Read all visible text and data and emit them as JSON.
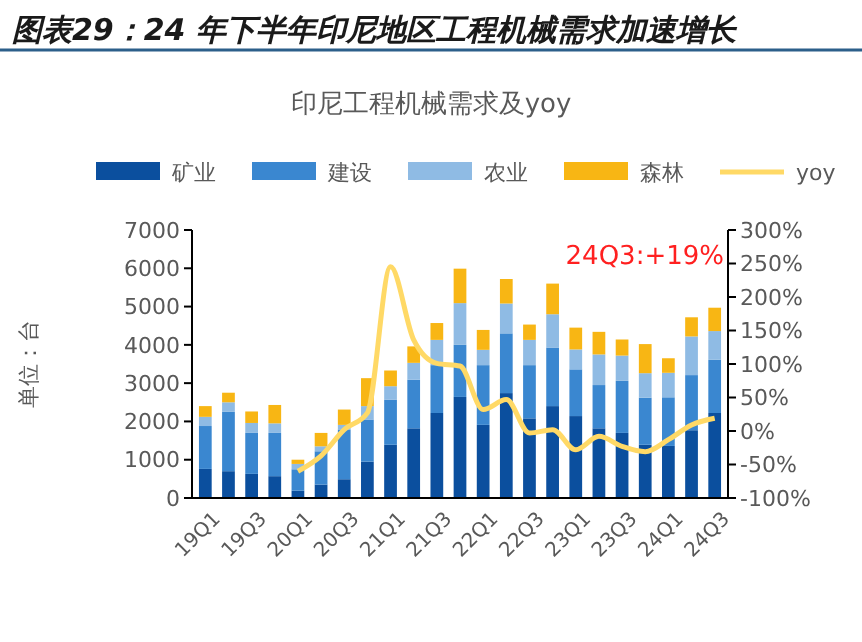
{
  "chart_data": {
    "type": "bar",
    "stacked": true,
    "title": "图表29：24 年下半年印尼地区工程机械需求加速增长",
    "subtitle": "印尼工程机械需求及yoy",
    "ylabel": "单位：台",
    "categories": [
      "19Q1",
      null,
      "19Q3",
      null,
      "20Q1",
      null,
      "20Q3",
      null,
      "21Q1",
      null,
      "21Q3",
      null,
      "22Q1",
      null,
      "22Q3",
      null,
      "23Q1",
      null,
      "23Q3",
      null,
      "24Q1",
      null,
      "24Q3"
    ],
    "series": [
      {
        "name": "矿业",
        "color": "#0b4f9e",
        "values": [
          760,
          700,
          630,
          570,
          190,
          350,
          490,
          950,
          1390,
          1820,
          2220,
          2640,
          1910,
          2740,
          2080,
          2400,
          2140,
          1820,
          1700,
          1390,
          1360,
          1770,
          2220
        ]
      },
      {
        "name": "建设",
        "color": "#3a87d0",
        "values": [
          1120,
          1550,
          1070,
          1130,
          560,
          870,
          1300,
          1100,
          1180,
          1270,
          1250,
          1360,
          1560,
          1560,
          1390,
          1530,
          1220,
          1130,
          1360,
          1230,
          1270,
          1440,
          1390
        ]
      },
      {
        "name": "农业",
        "color": "#8fbbe4",
        "values": [
          240,
          250,
          260,
          250,
          140,
          130,
          120,
          350,
          350,
          440,
          660,
          1090,
          400,
          780,
          660,
          870,
          520,
          800,
          660,
          640,
          640,
          1010,
          750
        ]
      },
      {
        "name": "森林",
        "color": "#f8b614",
        "values": [
          280,
          250,
          300,
          480,
          110,
          350,
          400,
          730,
          410,
          430,
          440,
          900,
          520,
          640,
          400,
          800,
          570,
          590,
          420,
          760,
          380,
          500,
          610
        ]
      },
      {
        "name": "yoy",
        "type": "line",
        "axis": "y2",
        "color": "#ffd966",
        "marker": "none",
        "values": [
          null,
          null,
          null,
          null,
          -60,
          -37,
          2,
          27,
          245,
          136,
          101,
          97,
          32,
          47,
          -3,
          2,
          -28,
          -8,
          -23,
          -31,
          -13,
          9,
          19
        ]
      }
    ],
    "ylim": [
      0,
      7000
    ],
    "yticks": [
      0,
      1000,
      2000,
      3000,
      4000,
      5000,
      6000,
      7000
    ],
    "y2lim": [
      -100,
      300
    ],
    "y2ticks": [
      {
        "value": -100,
        "label": "-100%"
      },
      {
        "value": -50,
        "label": "-50%"
      },
      {
        "value": 0,
        "label": "0%"
      },
      {
        "value": 50,
        "label": "50%"
      },
      {
        "value": 100,
        "label": "100%"
      },
      {
        "value": 150,
        "label": "150%"
      },
      {
        "value": 200,
        "label": "200%"
      },
      {
        "value": 250,
        "label": "250%"
      },
      {
        "value": 300,
        "label": "300%"
      }
    ],
    "annotations": [
      "24Q3:+19%"
    ],
    "legend": "top",
    "grid": false
  }
}
